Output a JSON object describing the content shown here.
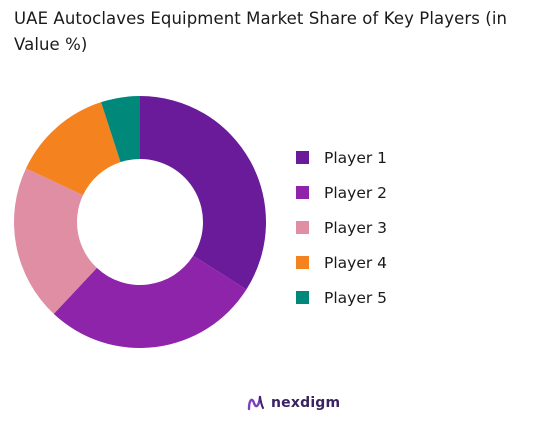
{
  "chart_data": {
    "type": "pie",
    "title": "UAE Autoclaves Equipment Market Share of Key Players (in Value %)",
    "categories": [
      "Player 1",
      "Player 2",
      "Player 3",
      "Player 4",
      "Player 5"
    ],
    "values": [
      34,
      28,
      20,
      13,
      5
    ],
    "colors": [
      "#6a1b9a",
      "#8e24aa",
      "#e08ea4",
      "#f4821f",
      "#00897b"
    ],
    "donut": true,
    "legend_position": "right"
  },
  "brand": {
    "name": "nexdigm",
    "icon": "nexdigm-logo-icon"
  }
}
